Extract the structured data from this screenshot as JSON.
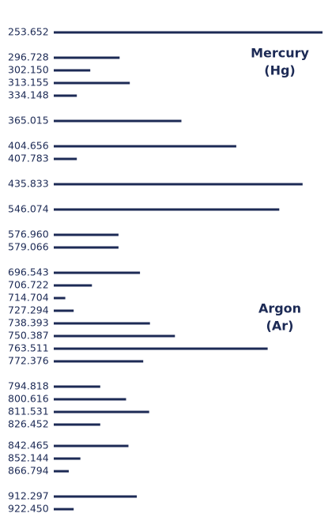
{
  "chart_data": {
    "type": "bar",
    "orientation": "horizontal",
    "bar_color": "#1c2a55",
    "grid": false,
    "xlim": [
      0,
      100
    ],
    "groups": [
      {
        "label": [
          "Mercury",
          "(Hg)"
        ]
      },
      {
        "label": [
          "Argon",
          "(Ar)"
        ]
      }
    ],
    "series": [
      {
        "categories": [
          "253.652",
          "296.728",
          "302.150",
          "313.155",
          "334.148",
          "365.015",
          "404.656",
          "407.783",
          "435.833",
          "546.074",
          "576.960",
          "579.066",
          "696.543",
          "706.722",
          "714.704",
          "727.294",
          "738.393",
          "750.387",
          "763.511",
          "772.376",
          "794.818",
          "800.616",
          "811.531",
          "826.452",
          "842.465",
          "852.144",
          "866.794",
          "912.297",
          "922.450"
        ],
        "values": [
          100,
          24.5,
          13.6,
          28.3,
          8.6,
          47.5,
          67.9,
          8.6,
          92.6,
          83.9,
          24.1,
          24.1,
          32.1,
          14.2,
          4.3,
          7.4,
          35.8,
          45.1,
          79.6,
          33.3,
          17.3,
          26.9,
          35.5,
          17.3,
          27.8,
          9.9,
          5.6,
          30.9,
          7.4
        ]
      }
    ]
  }
}
